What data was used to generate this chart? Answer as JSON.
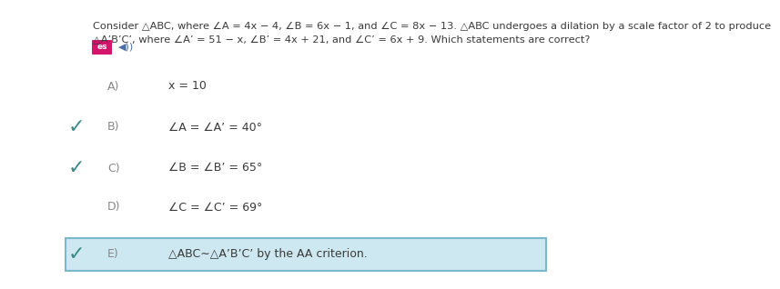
{
  "title_line1": "Consider △ABC, where ∠A = 4x − 4, ∠B = 6x − 1, and ∠C = 8x − 13. △ABC undergoes a dilation by a scale factor of 2 to produce",
  "title_line2": "△A’B’C’, where ∠A’ = 51 − x, ∠B’ = 4x + 21, and ∠C’ = 6x + 9. Which statements are correct?",
  "options": [
    {
      "label": "A)",
      "text": "x = 10",
      "correct": false,
      "highlighted": false
    },
    {
      "label": "B)",
      "text": "∠A = ∠A’ = 40°",
      "correct": true,
      "highlighted": false
    },
    {
      "label": "C)",
      "text": "∠B = ∠B’ = 65°",
      "correct": true,
      "highlighted": false
    },
    {
      "label": "D)",
      "text": "∠C = ∠C’ = 69°",
      "correct": false,
      "highlighted": false
    },
    {
      "label": "E)",
      "text": "△ABC∼△A’B’C’ by the AA criterion.",
      "correct": true,
      "highlighted": true
    }
  ],
  "check_color": "#3a8a8a",
  "highlight_bg": "#cde8f0",
  "highlight_border": "#7ab8cc",
  "icon_pink_bg": "#d4156b",
  "bg_color": "#ffffff",
  "text_color": "#3a3a3a",
  "option_label_color": "#888888",
  "title_fontsize": 8.2,
  "option_fontsize": 9.0,
  "label_fontsize": 9.0
}
